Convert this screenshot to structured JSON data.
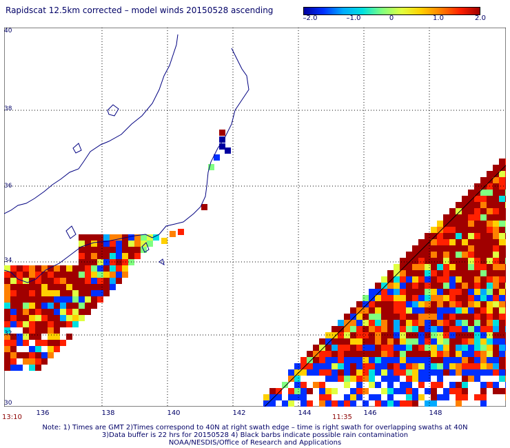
{
  "title": "Rapidscat 12.5km corrected – model winds 20150528 ascending",
  "colorbar": {
    "ticks": [
      "–2.0",
      "–1.0",
      "0",
      "1.0",
      "2.0"
    ],
    "tick_values": [
      -2.0,
      -1.0,
      0,
      1.0,
      2.0
    ],
    "colors": [
      "#0000a0",
      "#0030ff",
      "#00aaff",
      "#00e0e0",
      "#80ff80",
      "#e0ff40",
      "#ffd000",
      "#ff8000",
      "#ff2000",
      "#a00000"
    ]
  },
  "lat_labels": [
    "40",
    "38",
    "36",
    "34",
    "32",
    "30"
  ],
  "lat_values": [
    40,
    38,
    36,
    34,
    32,
    30
  ],
  "lon_labels": [
    "136",
    "138",
    "140",
    "142",
    "144",
    "146",
    "148"
  ],
  "lon_values": [
    136,
    138,
    140,
    142,
    144,
    146,
    148
  ],
  "time_labels": [
    {
      "text": "13:10"
    },
    {
      "text": "11:35"
    }
  ],
  "footer_lines": [
    "Note: 1) Times are GMT 2)Times correspond to 40N at right swath edge – time is right swath for overlapping swaths at 40N",
    "3)Data buffer is 22 hrs for 20150528 4) Black barbs indicate possible rain contamination",
    "NOAA/NESDIS/Office of Research and Applications"
  ]
}
